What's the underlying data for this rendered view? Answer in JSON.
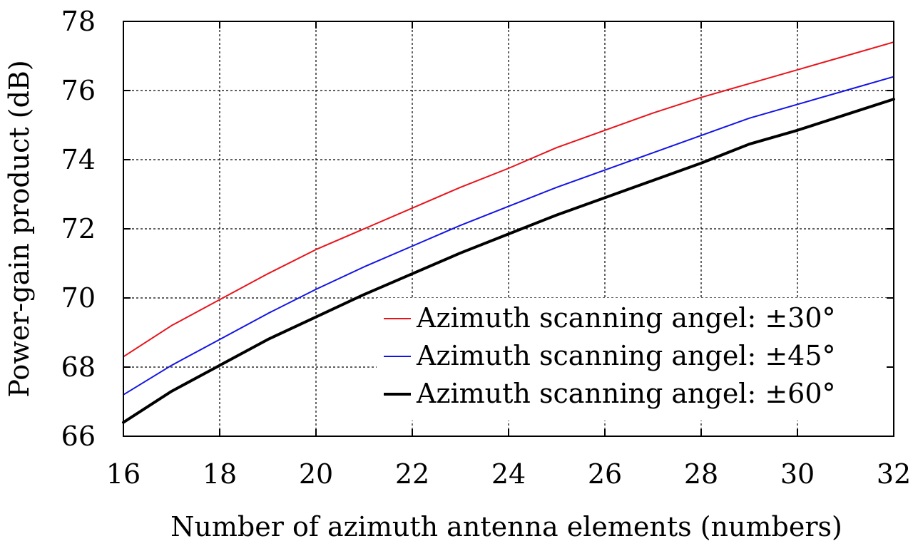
{
  "chart_data": {
    "type": "line",
    "xlabel": "Number of azimuth antenna elements (numbers)",
    "ylabel": "Power-gain product (dB)",
    "xlim": [
      16,
      32
    ],
    "ylim": [
      66,
      78
    ],
    "xticks": [
      16,
      18,
      20,
      22,
      24,
      26,
      28,
      30,
      32
    ],
    "yticks": [
      66,
      68,
      70,
      72,
      74,
      76,
      78
    ],
    "xtick_labels": [
      "16",
      "18",
      "20",
      "22",
      "24",
      "26",
      "28",
      "30",
      "32"
    ],
    "ytick_labels": [
      "66",
      "68",
      "70",
      "72",
      "74",
      "76",
      "78"
    ],
    "grid": true,
    "legend_position": "bottom-right",
    "x": [
      16,
      17,
      18,
      19,
      20,
      21,
      22,
      23,
      24,
      25,
      26,
      27,
      28,
      29,
      30,
      31,
      32
    ],
    "series": [
      {
        "name": "Azimuth scanning angel: ±30°",
        "color": "#e8141b",
        "values": [
          68.3,
          69.2,
          69.95,
          70.7,
          71.4,
          72.0,
          72.6,
          73.2,
          73.75,
          74.35,
          74.85,
          75.35,
          75.8,
          76.2,
          76.6,
          77.0,
          77.4
        ]
      },
      {
        "name": "Azimuth scanning angel: ±45°",
        "color": "#1414e6",
        "values": [
          67.2,
          68.05,
          68.8,
          69.55,
          70.25,
          70.9,
          71.5,
          72.1,
          72.65,
          73.2,
          73.7,
          74.2,
          74.7,
          75.2,
          75.6,
          76.0,
          76.4
        ]
      },
      {
        "name": "Azimuth scanning angel: ±60°",
        "color": "#000000",
        "values": [
          66.4,
          67.3,
          68.05,
          68.8,
          69.45,
          70.1,
          70.7,
          71.3,
          71.85,
          72.4,
          72.9,
          73.4,
          73.9,
          74.45,
          74.85,
          75.3,
          75.75
        ]
      }
    ]
  }
}
